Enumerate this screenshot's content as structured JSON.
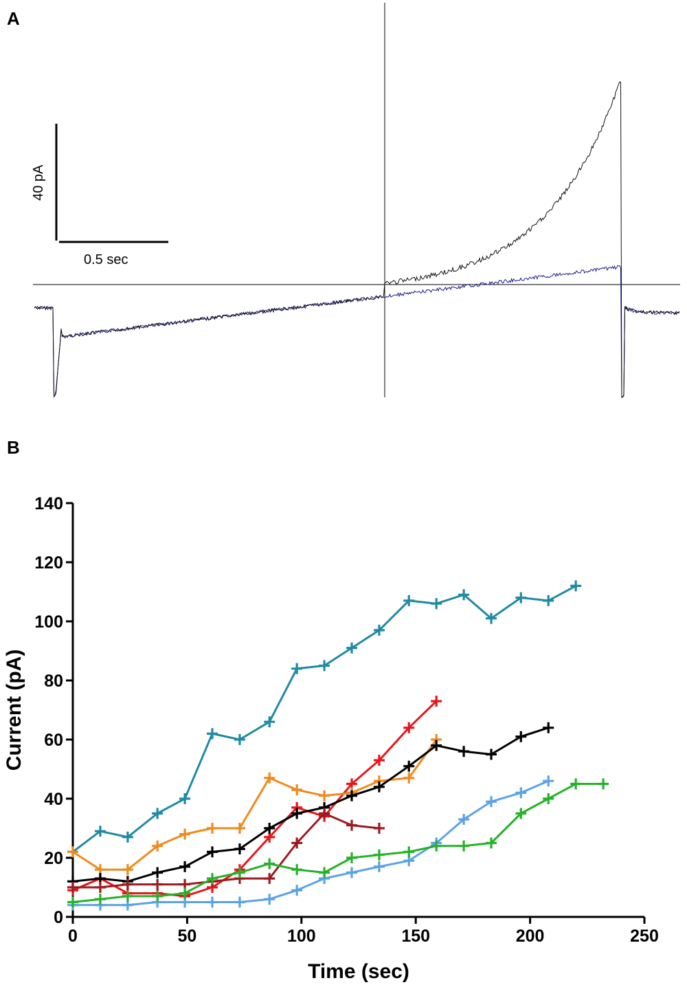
{
  "panel_a": {
    "label": "A",
    "scale_bar_y_label": "40 pA",
    "scale_bar_x_label": "0.5 sec",
    "traces": [
      {
        "name": "black trace",
        "color": "#111111"
      },
      {
        "name": "blue trace",
        "color": "#1a1a8c"
      }
    ]
  },
  "panel_b": {
    "label": "B"
  },
  "chart_data": {
    "type": "line",
    "title": "",
    "xlabel": "Time (sec)",
    "ylabel": "Current (pA)",
    "xlim": [
      0,
      250
    ],
    "ylim": [
      0,
      140
    ],
    "x_ticks": [
      0,
      50,
      100,
      150,
      200,
      250
    ],
    "y_ticks": [
      0,
      20,
      40,
      60,
      80,
      100,
      120,
      140
    ],
    "series": [
      {
        "name": "teal",
        "color": "#1f8aa3",
        "x": [
          0,
          12,
          24,
          37,
          49,
          61,
          73,
          86,
          98,
          110,
          122,
          134,
          147,
          159,
          171,
          183,
          196,
          208,
          220
        ],
        "y": [
          22,
          29,
          27,
          35,
          40,
          62,
          60,
          66,
          84,
          85,
          91,
          97,
          107,
          106,
          109,
          101,
          108,
          107,
          112
        ]
      },
      {
        "name": "red",
        "color": "#e8151b",
        "x": [
          0,
          12,
          24,
          37,
          49,
          61,
          73,
          86,
          98,
          110,
          122,
          134,
          147,
          159
        ],
        "y": [
          9,
          13,
          8,
          8,
          7,
          10,
          16,
          27,
          37,
          34,
          45,
          53,
          64,
          73
        ]
      },
      {
        "name": "orange",
        "color": "#f08a1d",
        "x": [
          0,
          12,
          24,
          37,
          49,
          61,
          73,
          86,
          98,
          110,
          122,
          134,
          147,
          159
        ],
        "y": [
          22,
          16,
          16,
          24,
          28,
          30,
          30,
          47,
          43,
          41,
          42,
          46,
          47,
          60
        ]
      },
      {
        "name": "black",
        "color": "#000000",
        "x": [
          0,
          12,
          24,
          37,
          49,
          61,
          73,
          86,
          98,
          110,
          122,
          134,
          147,
          159,
          171,
          183,
          196,
          208
        ],
        "y": [
          12,
          13,
          12,
          15,
          17,
          22,
          23,
          30,
          35,
          37,
          41,
          44,
          51,
          58,
          56,
          55,
          61,
          64
        ]
      },
      {
        "name": "dark red",
        "color": "#9c1a1f",
        "x": [
          0,
          12,
          24,
          37,
          49,
          61,
          73,
          86,
          98,
          110,
          122,
          134
        ],
        "y": [
          10,
          10,
          11,
          11,
          11,
          12,
          13,
          13,
          25,
          35,
          31,
          30
        ]
      },
      {
        "name": "light blue",
        "color": "#5aa2e8",
        "x": [
          0,
          12,
          24,
          37,
          49,
          61,
          73,
          86,
          98,
          110,
          122,
          134,
          147,
          159,
          171,
          183,
          196,
          208
        ],
        "y": [
          4,
          4,
          4,
          5,
          5,
          5,
          5,
          6,
          9,
          13,
          15,
          17,
          19,
          25,
          33,
          39,
          42,
          46
        ]
      },
      {
        "name": "green",
        "color": "#27b12a",
        "x": [
          0,
          12,
          24,
          37,
          49,
          61,
          73,
          86,
          98,
          110,
          122,
          134,
          147,
          159,
          171,
          183,
          196,
          208,
          220,
          232
        ],
        "y": [
          5,
          6,
          7,
          7,
          8,
          13,
          15,
          18,
          16,
          15,
          20,
          21,
          22,
          24,
          24,
          25,
          35,
          40,
          45,
          45
        ]
      }
    ]
  }
}
